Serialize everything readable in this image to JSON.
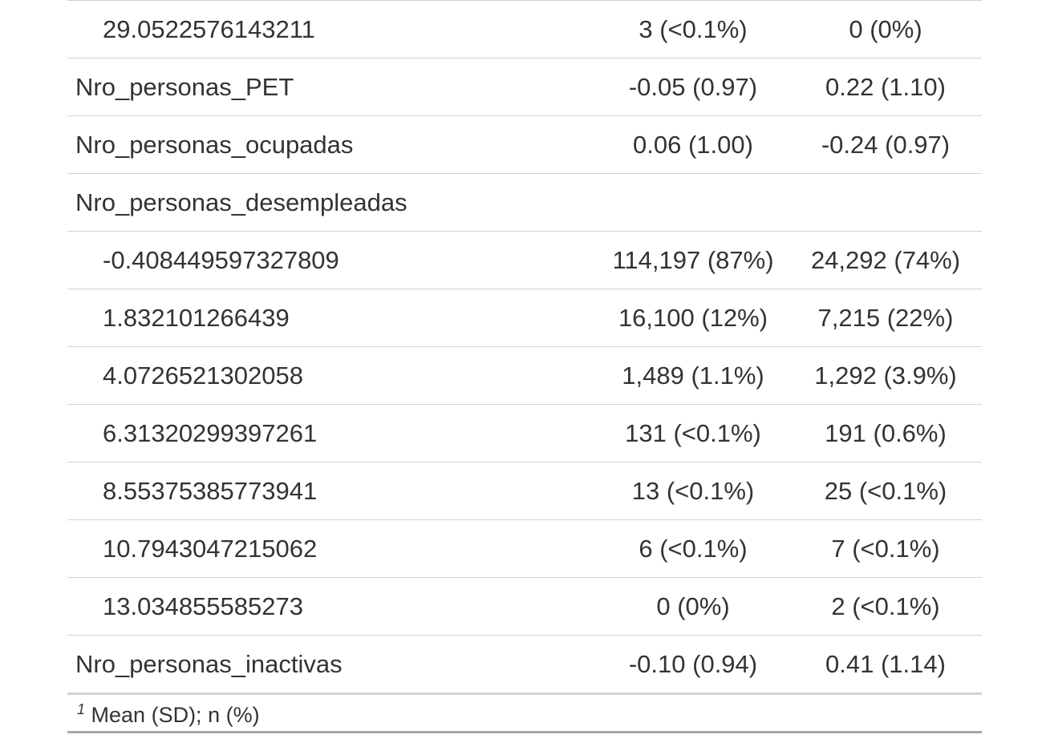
{
  "table": {
    "rows": [
      {
        "label": "29.0522576143211",
        "indent": true,
        "col1": "3 (<0.1%)",
        "col2": "0 (0%)"
      },
      {
        "label": "Nro_personas_PET",
        "indent": false,
        "col1": "-0.05 (0.97)",
        "col2": "0.22 (1.10)"
      },
      {
        "label": "Nro_personas_ocupadas",
        "indent": false,
        "col1": "0.06 (1.00)",
        "col2": "-0.24 (0.97)"
      },
      {
        "label": "Nro_personas_desempleadas",
        "indent": false,
        "col1": "",
        "col2": ""
      },
      {
        "label": "-0.408449597327809",
        "indent": true,
        "col1": "114,197 (87%)",
        "col2": "24,292 (74%)"
      },
      {
        "label": "1.832101266439",
        "indent": true,
        "col1": "16,100 (12%)",
        "col2": "7,215 (22%)"
      },
      {
        "label": "4.0726521302058",
        "indent": true,
        "col1": "1,489 (1.1%)",
        "col2": "1,292 (3.9%)"
      },
      {
        "label": "6.31320299397261",
        "indent": true,
        "col1": "131 (<0.1%)",
        "col2": "191 (0.6%)"
      },
      {
        "label": "8.55375385773941",
        "indent": true,
        "col1": "13 (<0.1%)",
        "col2": "25 (<0.1%)"
      },
      {
        "label": "10.7943047215062",
        "indent": true,
        "col1": "6 (<0.1%)",
        "col2": "7 (<0.1%)"
      },
      {
        "label": "13.034855585273",
        "indent": true,
        "col1": "0 (0%)",
        "col2": "2 (<0.1%)"
      },
      {
        "label": "Nro_personas_inactivas",
        "indent": false,
        "col1": "-0.10 (0.94)",
        "col2": "0.41 (1.14)"
      }
    ],
    "footnote": {
      "marker": "1",
      "text": "Mean (SD); n (%)"
    }
  }
}
